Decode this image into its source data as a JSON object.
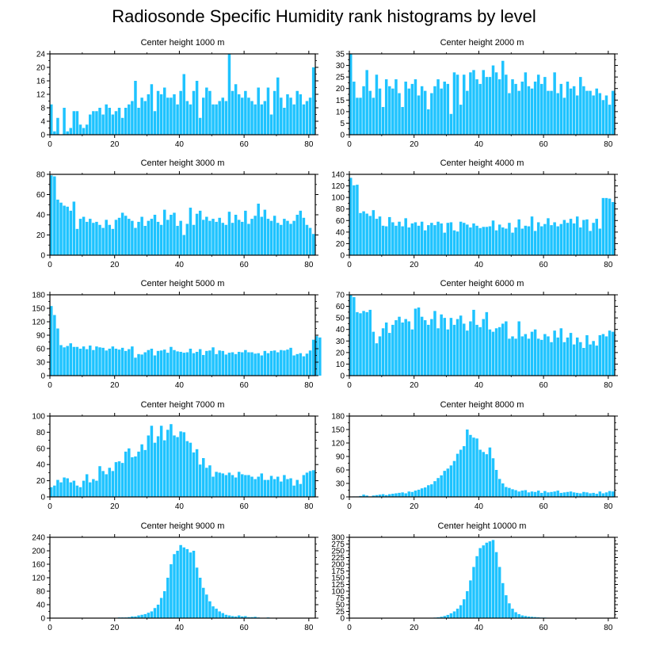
{
  "title": "Radiosonde Specific Humidity rank histograms by level",
  "colors": {
    "bar": "#1ec3ff",
    "bar_edge": "#ffffff",
    "axis": "#000000"
  },
  "chart_data": [
    {
      "type": "bar",
      "title": "Center height 1000 m",
      "xlim": [
        0,
        82
      ],
      "xticks": [
        0,
        20,
        40,
        60,
        80
      ],
      "ylim": [
        0,
        24
      ],
      "yticks": [
        0,
        4,
        8,
        12,
        16,
        20,
        24
      ],
      "values": [
        9,
        1,
        5,
        0,
        8,
        1,
        2,
        7,
        7,
        3,
        2,
        3,
        6,
        7,
        7,
        8,
        6,
        9,
        8,
        6,
        7,
        8,
        5,
        8,
        9,
        10,
        16,
        8,
        11,
        10,
        12,
        15,
        7,
        13,
        12,
        14,
        11,
        11,
        12,
        9,
        13,
        18,
        10,
        9,
        13,
        16,
        5,
        11,
        14,
        13,
        9,
        9,
        10,
        11,
        10,
        24,
        13,
        15,
        12,
        11,
        13,
        11,
        10,
        9,
        14,
        9,
        10,
        14,
        6,
        13,
        17,
        11,
        8,
        12,
        11,
        9,
        13,
        12,
        9,
        10,
        11,
        20
      ]
    },
    {
      "type": "bar",
      "title": "Center height 2000 m",
      "xlim": [
        0,
        82
      ],
      "xticks": [
        0,
        20,
        40,
        60,
        80
      ],
      "ylim": [
        0,
        35
      ],
      "yticks": [
        0,
        5,
        10,
        15,
        20,
        25,
        30,
        35
      ],
      "values": [
        35,
        23,
        16,
        16,
        21,
        28,
        19,
        16,
        26,
        20,
        12,
        24,
        21,
        20,
        24,
        18,
        12,
        23,
        20,
        22,
        24,
        17,
        21,
        19,
        11,
        18,
        21,
        24,
        20,
        23,
        22,
        9,
        27,
        26,
        13,
        26,
        19,
        27,
        28,
        24,
        22,
        28,
        25,
        25,
        30,
        27,
        24,
        32,
        26,
        18,
        24,
        22,
        19,
        23,
        27,
        21,
        20,
        23,
        26,
        22,
        25,
        19,
        19,
        27,
        18,
        22,
        16,
        23,
        20,
        21,
        17,
        25,
        21,
        19,
        19,
        17,
        20,
        18,
        15,
        17,
        13,
        19
      ]
    },
    {
      "type": "bar",
      "title": "Center height 3000 m",
      "xlim": [
        0,
        82
      ],
      "xticks": [
        0,
        20,
        40,
        60,
        80
      ],
      "ylim": [
        0,
        80
      ],
      "yticks": [
        0,
        20,
        40,
        60,
        80
      ],
      "values": [
        79,
        78,
        55,
        52,
        49,
        48,
        44,
        53,
        26,
        36,
        38,
        33,
        36,
        32,
        33,
        30,
        27,
        35,
        30,
        26,
        35,
        37,
        42,
        39,
        36,
        34,
        27,
        33,
        38,
        29,
        34,
        36,
        40,
        33,
        30,
        45,
        35,
        40,
        42,
        29,
        34,
        20,
        31,
        47,
        30,
        41,
        44,
        35,
        38,
        34,
        36,
        33,
        37,
        32,
        30,
        43,
        32,
        40,
        35,
        33,
        44,
        31,
        36,
        39,
        51,
        38,
        45,
        36,
        34,
        39,
        32,
        30,
        36,
        34,
        31,
        34,
        40,
        44,
        37,
        30,
        27,
        21
      ]
    },
    {
      "type": "bar",
      "title": "Center height 4000 m",
      "xlim": [
        0,
        82
      ],
      "xticks": [
        0,
        20,
        40,
        60,
        80
      ],
      "ylim": [
        0,
        140
      ],
      "yticks": [
        0,
        20,
        40,
        60,
        80,
        100,
        120,
        140
      ],
      "values": [
        134,
        121,
        122,
        73,
        76,
        72,
        68,
        78,
        63,
        67,
        51,
        50,
        66,
        57,
        51,
        58,
        50,
        64,
        48,
        55,
        57,
        51,
        58,
        43,
        52,
        56,
        52,
        58,
        55,
        39,
        56,
        57,
        43,
        41,
        58,
        56,
        53,
        48,
        55,
        51,
        47,
        49,
        49,
        50,
        60,
        43,
        53,
        48,
        46,
        56,
        39,
        48,
        62,
        46,
        51,
        50,
        67,
        42,
        57,
        50,
        54,
        64,
        52,
        57,
        50,
        54,
        61,
        56,
        63,
        55,
        67,
        48,
        61,
        62,
        42,
        56,
        63,
        46,
        99,
        99,
        98,
        92
      ]
    },
    {
      "type": "bar",
      "title": "Center height 5000 m",
      "xlim": [
        0,
        82
      ],
      "xticks": [
        0,
        20,
        40,
        60,
        80
      ],
      "ylim": [
        0,
        180
      ],
      "yticks": [
        0,
        30,
        60,
        90,
        120,
        150,
        180
      ],
      "values": [
        155,
        135,
        105,
        68,
        63,
        66,
        72,
        64,
        64,
        60,
        65,
        59,
        67,
        57,
        65,
        63,
        62,
        56,
        60,
        65,
        60,
        58,
        62,
        55,
        59,
        65,
        40,
        48,
        47,
        52,
        57,
        60,
        45,
        55,
        56,
        58,
        51,
        64,
        57,
        54,
        53,
        51,
        52,
        60,
        50,
        53,
        59,
        46,
        55,
        56,
        63,
        48,
        56,
        55,
        47,
        51,
        52,
        48,
        53,
        52,
        57,
        52,
        52,
        49,
        50,
        45,
        55,
        50,
        55,
        56,
        52,
        57,
        56,
        58,
        62,
        45,
        48,
        50,
        43,
        49,
        56,
        80,
        88,
        85
      ]
    },
    {
      "type": "bar",
      "title": "Center height 6000 m",
      "xlim": [
        0,
        82
      ],
      "xticks": [
        0,
        20,
        40,
        60,
        80
      ],
      "ylim": [
        0,
        70
      ],
      "yticks": [
        0,
        10,
        20,
        30,
        40,
        50,
        60,
        70
      ],
      "values": [
        70,
        68,
        55,
        54,
        56,
        55,
        57,
        38,
        28,
        34,
        41,
        46,
        37,
        44,
        48,
        51,
        46,
        49,
        47,
        40,
        58,
        59,
        51,
        48,
        44,
        49,
        56,
        41,
        53,
        50,
        40,
        50,
        44,
        49,
        52,
        45,
        39,
        47,
        57,
        44,
        42,
        49,
        55,
        40,
        38,
        41,
        42,
        45,
        47,
        32,
        34,
        32,
        47,
        34,
        36,
        32,
        38,
        40,
        32,
        31,
        36,
        34,
        29,
        39,
        33,
        41,
        29,
        33,
        37,
        27,
        33,
        29,
        24,
        35,
        27,
        30,
        26,
        35,
        36,
        34,
        39,
        38
      ]
    },
    {
      "type": "bar",
      "title": "Center height 7000 m",
      "xlim": [
        0,
        82
      ],
      "xticks": [
        0,
        20,
        40,
        60,
        80
      ],
      "ylim": [
        0,
        100
      ],
      "yticks": [
        0,
        20,
        40,
        60,
        80,
        100
      ],
      "values": [
        12,
        14,
        21,
        18,
        24,
        23,
        18,
        20,
        14,
        12,
        20,
        28,
        18,
        22,
        20,
        38,
        32,
        28,
        36,
        32,
        43,
        44,
        42,
        56,
        60,
        49,
        50,
        56,
        65,
        58,
        76,
        88,
        67,
        75,
        88,
        70,
        83,
        90,
        76,
        74,
        81,
        80,
        69,
        67,
        55,
        59,
        40,
        48,
        36,
        39,
        25,
        31,
        30,
        29,
        27,
        30,
        27,
        24,
        31,
        28,
        27,
        27,
        25,
        22,
        25,
        29,
        21,
        21,
        26,
        22,
        25,
        19,
        27,
        22,
        23,
        14,
        21,
        16,
        27,
        30,
        32,
        33
      ]
    },
    {
      "type": "bar",
      "title": "Center height 8000 m",
      "xlim": [
        0,
        82
      ],
      "xticks": [
        0,
        20,
        40,
        60,
        80
      ],
      "ylim": [
        0,
        180
      ],
      "yticks": [
        0,
        30,
        60,
        90,
        120,
        150,
        180
      ],
      "values": [
        0,
        1,
        1,
        2,
        5,
        3,
        1,
        3,
        4,
        5,
        6,
        4,
        6,
        7,
        8,
        9,
        10,
        8,
        12,
        11,
        14,
        16,
        19,
        21,
        26,
        28,
        35,
        42,
        48,
        58,
        63,
        70,
        80,
        96,
        105,
        113,
        150,
        138,
        132,
        130,
        105,
        100,
        95,
        110,
        86,
        60,
        40,
        30,
        22,
        20,
        17,
        15,
        12,
        14,
        15,
        10,
        12,
        11,
        14,
        9,
        13,
        10,
        11,
        12,
        14,
        9,
        10,
        11,
        12,
        10,
        9,
        8,
        11,
        10,
        8,
        9,
        7,
        12,
        8,
        10,
        13,
        12
      ]
    },
    {
      "type": "bar",
      "title": "Center height 9000 m",
      "xlim": [
        0,
        82
      ],
      "xticks": [
        0,
        20,
        40,
        60,
        80
      ],
      "ylim": [
        0,
        240
      ],
      "yticks": [
        0,
        40,
        80,
        120,
        160,
        200,
        240
      ],
      "values": [
        0,
        0,
        0,
        0,
        0,
        0,
        0,
        0,
        0,
        0,
        0,
        0,
        0,
        0,
        0,
        0,
        0,
        0,
        0,
        0,
        1,
        2,
        2,
        2,
        3,
        5,
        5,
        8,
        10,
        12,
        16,
        20,
        30,
        40,
        60,
        80,
        120,
        160,
        190,
        200,
        217,
        210,
        205,
        195,
        200,
        150,
        120,
        90,
        70,
        50,
        35,
        28,
        20,
        15,
        10,
        8,
        6,
        5,
        8,
        5,
        6,
        3,
        3,
        4,
        2,
        1,
        1,
        2,
        1,
        0,
        1,
        0,
        1,
        0,
        0,
        0,
        0,
        0,
        0,
        0,
        0,
        0
      ]
    },
    {
      "type": "bar",
      "title": "Center height 10000 m",
      "xlim": [
        0,
        82
      ],
      "xticks": [
        0,
        20,
        40,
        60,
        80
      ],
      "ylim": [
        0,
        300
      ],
      "yticks": [
        0,
        25,
        50,
        75,
        100,
        125,
        150,
        175,
        200,
        225,
        250,
        275,
        300
      ],
      "values": [
        0,
        0,
        0,
        0,
        0,
        0,
        0,
        0,
        0,
        0,
        0,
        0,
        0,
        0,
        0,
        0,
        0,
        0,
        0,
        0,
        0,
        0,
        0,
        0,
        0,
        0,
        2,
        3,
        5,
        8,
        12,
        18,
        25,
        35,
        48,
        70,
        100,
        140,
        190,
        230,
        260,
        270,
        280,
        285,
        290,
        245,
        190,
        130,
        85,
        55,
        35,
        22,
        15,
        10,
        8,
        6,
        5,
        4,
        3,
        2,
        2,
        1,
        1,
        1,
        0,
        0,
        0,
        0,
        0,
        0,
        0,
        0,
        0,
        0,
        0,
        0,
        0,
        0,
        0,
        0,
        0,
        0
      ]
    }
  ]
}
